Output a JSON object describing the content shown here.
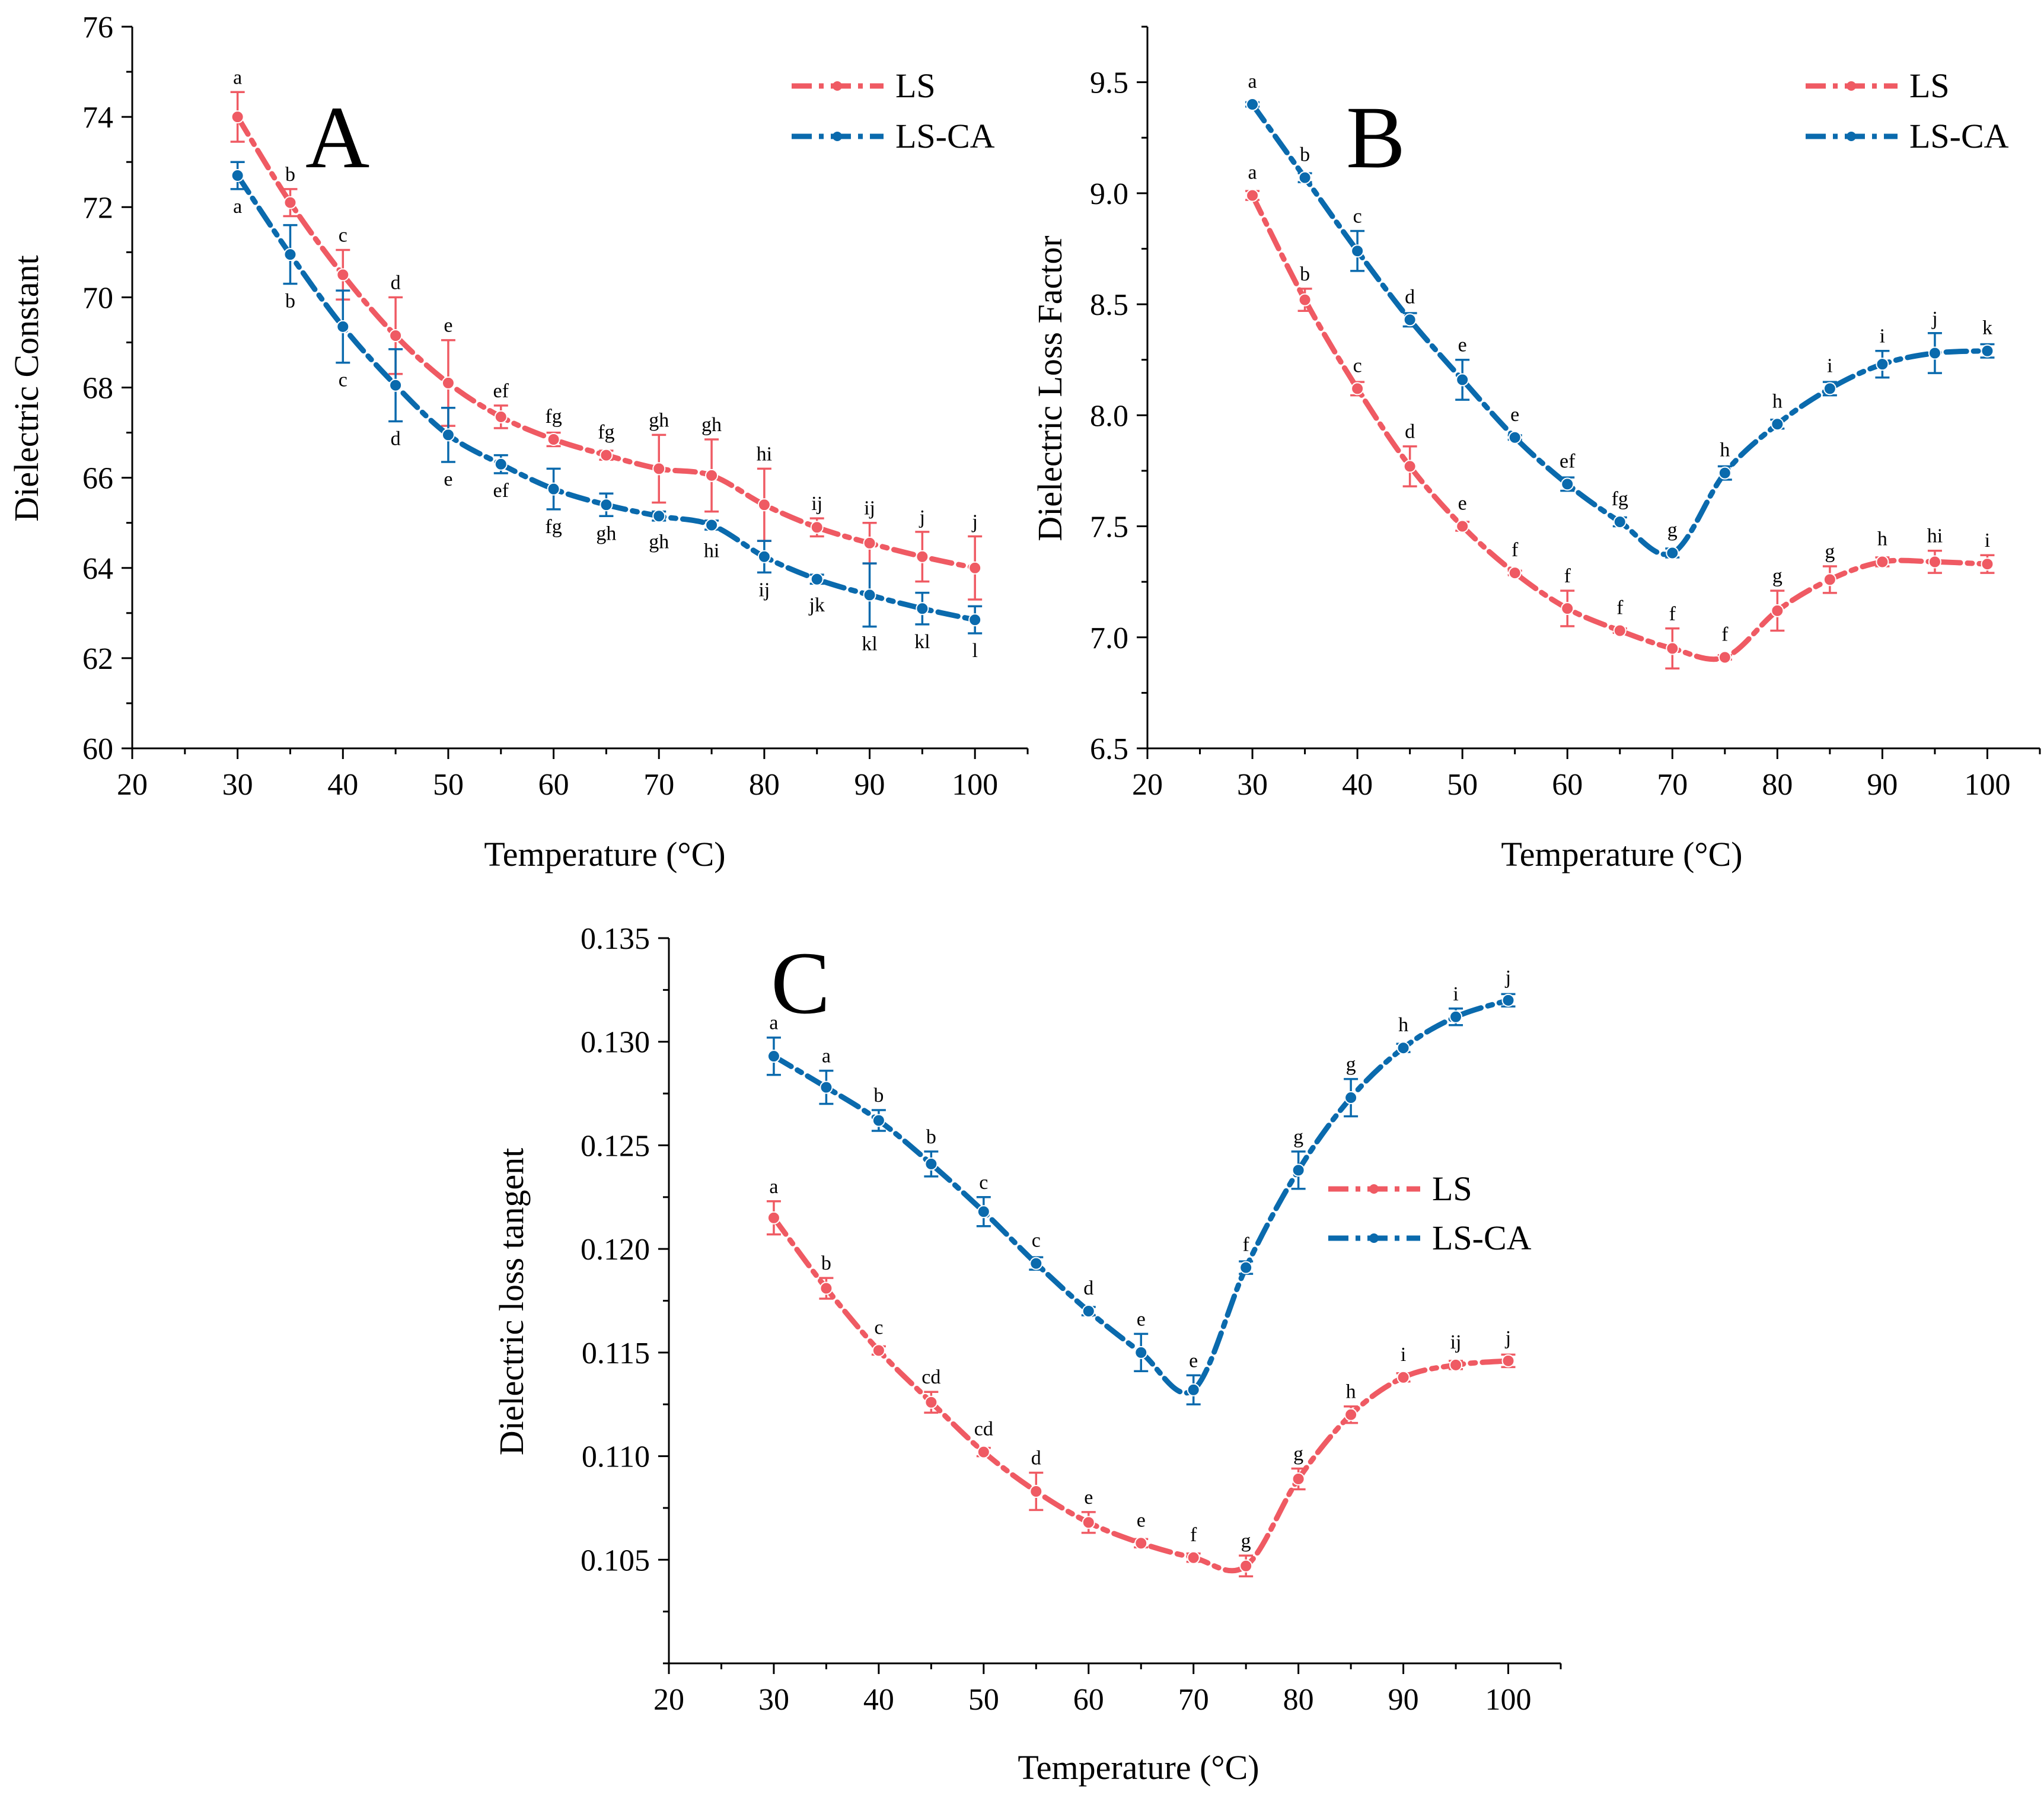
{
  "colors": {
    "LS": "#ef5a63",
    "LS-CA": "#0a6aad",
    "axis": "#000000",
    "background": "#ffffff"
  },
  "chart_data": [
    {
      "panel": "A",
      "type": "line",
      "xlabel": "Temperature (°C)",
      "ylabel": "Dielectric Constant",
      "xlim": [
        20,
        105
      ],
      "ylim": [
        60,
        76
      ],
      "xticks": [
        20,
        30,
        40,
        50,
        60,
        70,
        80,
        90,
        100
      ],
      "yticks": [
        60,
        62,
        64,
        66,
        68,
        70,
        72,
        74,
        76
      ],
      "ytick_labels": [
        "60",
        "62",
        "64",
        "66",
        "68",
        "70",
        "72",
        "74",
        "76"
      ],
      "legend_position": "top-right",
      "x": [
        30,
        35,
        40,
        45,
        50,
        55,
        60,
        65,
        70,
        75,
        80,
        85,
        90,
        95,
        100
      ],
      "series": [
        {
          "name": "LS",
          "values": [
            74.0,
            72.1,
            70.5,
            69.15,
            68.1,
            67.35,
            66.85,
            66.5,
            66.2,
            66.05,
            65.4,
            64.9,
            64.55,
            64.25,
            64.0
          ],
          "errors": [
            0.55,
            0.3,
            0.55,
            0.85,
            0.95,
            0.25,
            0.15,
            0.1,
            0.75,
            0.8,
            0.8,
            0.2,
            0.45,
            0.55,
            0.7
          ],
          "letters": [
            "a",
            "b",
            "c",
            "d",
            "e",
            "ef",
            "fg",
            "fg",
            "gh",
            "gh",
            "hi",
            "ij",
            "ij",
            "j",
            "j"
          ],
          "letter_side": "above"
        },
        {
          "name": "LS-CA",
          "values": [
            72.7,
            70.95,
            69.35,
            68.05,
            66.95,
            66.3,
            65.75,
            65.4,
            65.15,
            64.95,
            64.25,
            63.75,
            63.4,
            63.1,
            62.85
          ],
          "errors": [
            0.3,
            0.65,
            0.8,
            0.8,
            0.6,
            0.2,
            0.45,
            0.25,
            0.1,
            0.1,
            0.35,
            0.1,
            0.7,
            0.35,
            0.3
          ],
          "letters": [
            "a",
            "b",
            "c",
            "d",
            "e",
            "ef",
            "fg",
            "gh",
            "gh",
            "hi",
            "ij",
            "jk",
            "kl",
            "kl",
            "l"
          ],
          "letter_side": "below"
        }
      ]
    },
    {
      "panel": "B",
      "type": "line",
      "xlabel": "Temperature (°C)",
      "ylabel": "Dielectric Loss Factor",
      "xlim": [
        20,
        105
      ],
      "ylim": [
        6.5,
        9.75
      ],
      "xticks": [
        20,
        30,
        40,
        50,
        60,
        70,
        80,
        90,
        100
      ],
      "yticks": [
        6.5,
        7.0,
        7.5,
        8.0,
        8.5,
        9.0,
        9.5
      ],
      "ytick_labels": [
        "6.5",
        "7.0",
        "7.5",
        "8.0",
        "8.5",
        "9.0",
        "9.5"
      ],
      "legend_position": "top-right",
      "x": [
        30,
        35,
        40,
        45,
        50,
        55,
        60,
        65,
        70,
        75,
        80,
        85,
        90,
        95,
        100
      ],
      "series": [
        {
          "name": "LS",
          "values": [
            8.99,
            8.52,
            8.12,
            7.77,
            7.5,
            7.29,
            7.13,
            7.03,
            6.95,
            6.91,
            7.12,
            7.26,
            7.34,
            7.34,
            7.33
          ],
          "errors": [
            0.02,
            0.05,
            0.03,
            0.09,
            0.02,
            0.01,
            0.08,
            0.01,
            0.09,
            0.01,
            0.09,
            0.06,
            0.02,
            0.05,
            0.04
          ],
          "letters": [
            "a",
            "b",
            "c",
            "d",
            "e",
            "f",
            "f",
            "f",
            "f",
            "f",
            "g",
            "g",
            "h",
            "hi",
            "i"
          ],
          "letter_side": "above"
        },
        {
          "name": "LS-CA",
          "values": [
            9.4,
            9.07,
            8.74,
            8.43,
            8.16,
            7.9,
            7.69,
            7.52,
            7.38,
            7.74,
            7.96,
            8.12,
            8.23,
            8.28,
            8.29
          ],
          "errors": [
            0.01,
            0.02,
            0.09,
            0.03,
            0.09,
            0.01,
            0.03,
            0.02,
            0.02,
            0.03,
            0.02,
            0.03,
            0.06,
            0.09,
            0.03
          ],
          "letters": [
            "a",
            "b",
            "c",
            "d",
            "e",
            "e",
            "ef",
            "fg",
            "g",
            "h",
            "h",
            "i",
            "i",
            "j",
            "k"
          ],
          "letter_side": "above"
        }
      ]
    },
    {
      "panel": "C",
      "type": "line",
      "xlabel": "Temperature (°C)",
      "ylabel": "Dielectric loss tangent",
      "xlim": [
        20,
        105
      ],
      "ylim": [
        0.1,
        0.135
      ],
      "xticks": [
        20,
        30,
        40,
        50,
        60,
        70,
        80,
        90,
        100
      ],
      "yticks": [
        0.105,
        0.11,
        0.115,
        0.12,
        0.125,
        0.13,
        0.135
      ],
      "ytick_labels": [
        "0.105",
        "0.110",
        "0.115",
        "0.120",
        "0.125",
        "0.130",
        "0.135"
      ],
      "legend_position": "middle-right",
      "x": [
        30,
        35,
        40,
        45,
        50,
        55,
        60,
        65,
        70,
        75,
        80,
        85,
        90,
        95,
        100
      ],
      "series": [
        {
          "name": "LS",
          "values": [
            0.1215,
            0.1181,
            0.1151,
            0.1126,
            0.1102,
            0.1083,
            0.1068,
            0.1058,
            0.1051,
            0.1047,
            0.1089,
            0.112,
            0.1138,
            0.1144,
            0.1146
          ],
          "errors": [
            0.0008,
            0.0005,
            0.0002,
            0.0005,
            0.0002,
            0.0009,
            0.0005,
            0.0002,
            0.0002,
            0.0005,
            0.0005,
            0.0004,
            0.0002,
            0.0002,
            0.0003
          ],
          "letters": [
            "a",
            "b",
            "c",
            "cd",
            "cd",
            "d",
            "e",
            "e",
            "f",
            "g",
            "g",
            "h",
            "i",
            "ij",
            "j"
          ],
          "letter_side": "above"
        },
        {
          "name": "LS-CA",
          "values": [
            0.1293,
            0.1278,
            0.1262,
            0.1241,
            0.1218,
            0.1193,
            0.117,
            0.115,
            0.1132,
            0.1191,
            0.1238,
            0.1273,
            0.1297,
            0.1312,
            0.132
          ],
          "errors": [
            0.0009,
            0.0008,
            0.0005,
            0.0006,
            0.0007,
            0.0003,
            0.0002,
            0.0009,
            0.0007,
            0.0003,
            0.0009,
            0.0009,
            0.0002,
            0.0004,
            0.0003
          ],
          "letters": [
            "a",
            "a",
            "b",
            "b",
            "c",
            "c",
            "d",
            "e",
            "e",
            "f",
            "g",
            "g",
            "h",
            "i",
            "j"
          ],
          "letter_side": "above"
        }
      ]
    }
  ]
}
